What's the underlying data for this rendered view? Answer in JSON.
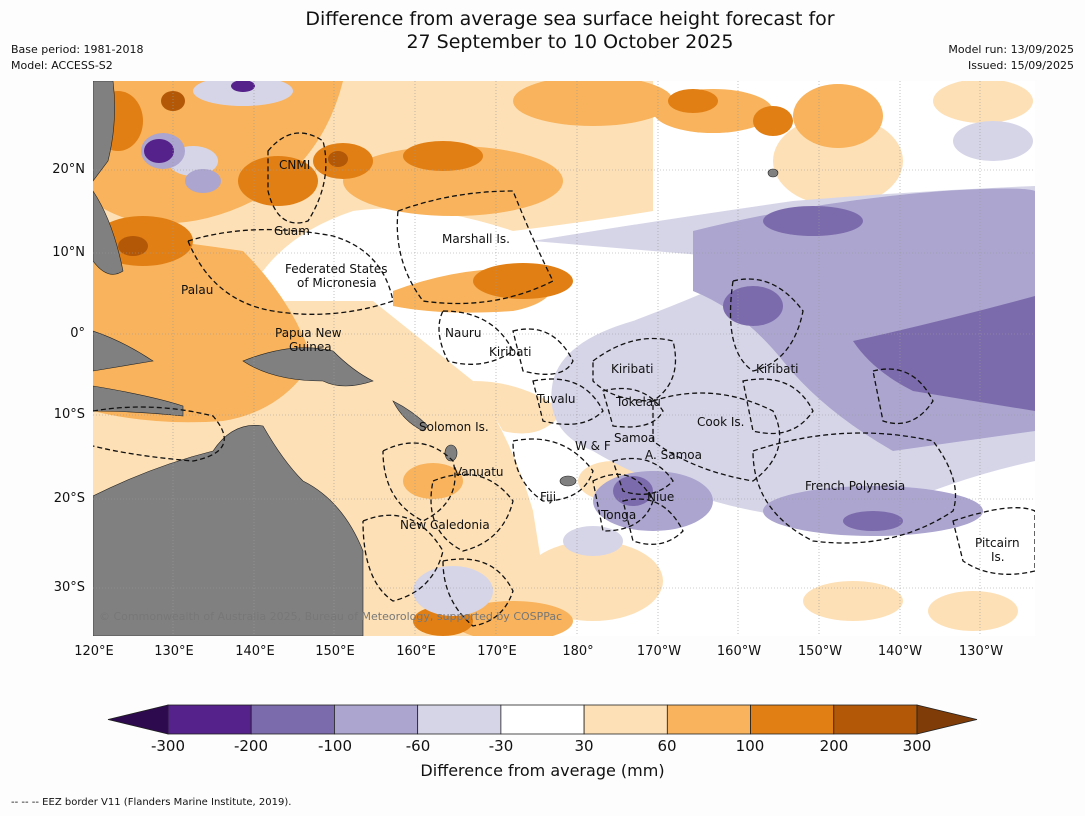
{
  "title_line1": "Difference from average sea surface height forecast for",
  "title_line2": "27 September to 10 October 2025",
  "meta_left": [
    "Base period: 1981-2018",
    "Model: ACCESS-S2"
  ],
  "meta_right": [
    "Model run: 13/09/2025",
    "Issued: 15/09/2025"
  ],
  "lat_labels": [
    "20°N",
    "10°N",
    "0°",
    "10°S",
    "20°S",
    "30°S"
  ],
  "lon_labels": [
    "120°E",
    "130°E",
    "140°E",
    "150°E",
    "160°E",
    "170°E",
    "180°",
    "170°W",
    "160°W",
    "150°W",
    "140°W",
    "130°W"
  ],
  "regions": {
    "cnmi": "CNMI",
    "guam": "Guam",
    "marshall": "Marshall Is.",
    "fsm_1": "Federated States",
    "fsm_2": "of Micronesia",
    "palau": "Palau",
    "png_1": "Papua New",
    "png_2": "Guinea",
    "nauru": "Nauru",
    "kiribati_w": "Kiribati",
    "kiribati_c": "Kiribati",
    "kiribati_e": "Kiribati",
    "tuvalu": "Tuvalu",
    "tokelau": "Tokelau",
    "cook": "Cook Is.",
    "solomon": "Solomon Is.",
    "samoa": "Samoa",
    "wf": "W & F",
    "asamoa": "A. Samoa",
    "vanuatu": "Vanuatu",
    "fiji": "Fiji",
    "niue": "Niue",
    "tonga": "Tonga",
    "french_polynesia": "French Polynesia",
    "new_caledonia": "New Caledonia",
    "pitcairn_1": "Pitcairn",
    "pitcairn_2": "Is."
  },
  "copyright": "© Commonwealth of Australia 2025, Bureau of Meteorology, supported by COSPPac",
  "colorbar": {
    "ticks": [
      "-300",
      "-200",
      "-100",
      "-60",
      "-30",
      "30",
      "60",
      "100",
      "200",
      "300"
    ],
    "colors": [
      "#2d0a4e",
      "#55218a",
      "#7c6bac",
      "#aba5cf",
      "#d6d5e8",
      "#ffffff",
      "#fde0b6",
      "#f8b35c",
      "#e17f14",
      "#b35807",
      "#7f3b08"
    ],
    "title": "Difference from average (mm)"
  },
  "footer": "-- -- -- EEZ border V11 (Flanders Marine Institute, 2019)."
}
